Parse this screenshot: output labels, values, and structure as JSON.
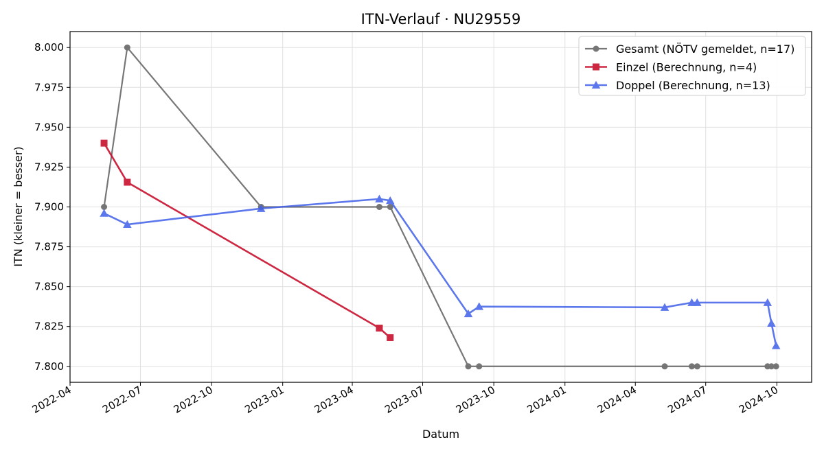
{
  "chart_data": {
    "type": "line",
    "title": "ITN-Verlauf · NU29559",
    "xlabel": "Datum",
    "ylabel": "ITN  (kleiner = besser)",
    "x_type": "date",
    "xlim": [
      "2022-04-01",
      "2024-11-15"
    ],
    "ylim": [
      7.79,
      8.01
    ],
    "y_ticks": [
      7.8,
      7.825,
      7.85,
      7.875,
      7.9,
      7.925,
      7.95,
      7.975,
      8.0
    ],
    "y_tick_labels": [
      "7.800",
      "7.825",
      "7.850",
      "7.875",
      "7.900",
      "7.925",
      "7.950",
      "7.975",
      "8.000"
    ],
    "x_ticks": [
      "2022-04-01",
      "2022-07-01",
      "2022-10-01",
      "2023-01-01",
      "2023-04-01",
      "2023-07-01",
      "2023-10-01",
      "2024-01-01",
      "2024-04-01",
      "2024-07-01",
      "2024-10-01"
    ],
    "x_tick_labels": [
      "2022-04",
      "2022-07",
      "2022-10",
      "2023-01",
      "2023-04",
      "2023-07",
      "2023-10",
      "2024-01",
      "2024-04",
      "2024-07",
      "2024-10"
    ],
    "grid": true,
    "legend_position": "top-right",
    "series": [
      {
        "name": "Gesamt (NÖTV gemeldet, n=17)",
        "color": "#555555",
        "marker": "circle",
        "x": [
          "2022-05-15",
          "2022-06-14",
          "2022-12-04",
          "2023-05-06",
          "2023-05-20",
          "2023-08-29",
          "2023-09-12",
          "2024-05-09",
          "2024-06-13",
          "2024-06-20",
          "2024-09-19",
          "2024-09-24",
          "2024-09-30"
        ],
        "y": [
          7.9,
          8.0,
          7.9,
          7.9,
          7.9,
          7.8,
          7.8,
          7.8,
          7.8,
          7.8,
          7.8,
          7.8,
          7.8
        ]
      },
      {
        "name": "Einzel (Berechnung, n=4)",
        "color": "#c8102e",
        "marker": "square",
        "x": [
          "2022-05-15",
          "2022-06-14",
          "2023-05-06",
          "2023-05-20"
        ],
        "y": [
          7.94,
          7.9155,
          7.824,
          7.818
        ]
      },
      {
        "name": "Doppel (Berechnung, n=13)",
        "color": "#4060e8",
        "marker": "triangle",
        "x": [
          "2022-05-15",
          "2022-06-14",
          "2022-12-04",
          "2023-05-06",
          "2023-05-20",
          "2023-08-29",
          "2023-09-12",
          "2024-05-09",
          "2024-06-13",
          "2024-06-20",
          "2024-09-19",
          "2024-09-24",
          "2024-09-30"
        ],
        "y": [
          7.896,
          7.889,
          7.899,
          7.905,
          7.904,
          7.833,
          7.8375,
          7.837,
          7.84,
          7.84,
          7.84,
          7.827,
          7.813
        ]
      }
    ]
  }
}
